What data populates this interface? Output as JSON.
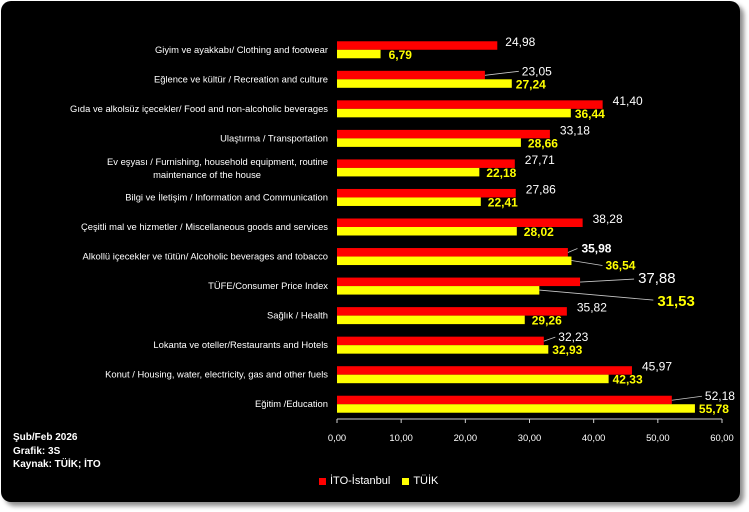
{
  "chart_data": {
    "type": "bar",
    "orientation": "horizontal",
    "categories": [
      "Giyim ve ayakkabı/ Clothing and footwear",
      "Eğlence ve kültür / Recreation and culture",
      "Gıda ve alkolsüz içecekler/ Food and non-alcoholic beverages",
      "Ulaştırma / Transportation",
      "Ev eşyası / Furnishing, household equipment, routine maintenance of the house",
      "Bilgi ve İletişim / Information and Communication",
      "Çeşitli mal ve hizmetler / Miscellaneous goods and services",
      "Alkollü içecekler ve tütün/ Alcoholic beverages and tobacco",
      "TÜFE/Consumer Price Index",
      "Sağlık / Health",
      "Lokanta ve oteller/Restaurants and Hotels",
      "Konut / Housing, water, electricity, gas and other fuels",
      "Eğitim /Education"
    ],
    "series": [
      {
        "name": "İTO-İstanbul",
        "color": "#ff0000",
        "values": [
          24.98,
          23.05,
          41.4,
          33.18,
          27.71,
          27.86,
          38.28,
          35.98,
          37.88,
          35.82,
          32.23,
          45.97,
          52.18
        ],
        "labels": [
          "24,98",
          "23,05",
          "41,40",
          "33,18",
          "27,71",
          "27,86",
          "38,28",
          "35,98",
          "37,88",
          "35,82",
          "32,23",
          "45,97",
          "52,18"
        ]
      },
      {
        "name": "TÜİK",
        "color": "#ffff00",
        "values": [
          6.79,
          27.24,
          36.44,
          28.66,
          22.18,
          22.41,
          28.02,
          36.54,
          31.53,
          29.26,
          32.93,
          42.33,
          55.78
        ],
        "labels": [
          "6,79",
          "27,24",
          "36,44",
          "28,66",
          "22,18",
          "22,41",
          "28,02",
          "36,54",
          "31,53",
          "29,26",
          "32,93",
          "42,33",
          "55,78"
        ]
      }
    ],
    "xlim": [
      0,
      60
    ],
    "xticks": [
      "0,00",
      "10,00",
      "20,00",
      "30,00",
      "40,00",
      "50,00",
      "60,00"
    ],
    "legend_position": "bottom"
  },
  "notes": {
    "line1": "Şub/Feb 2026",
    "line2": "Grafik: 3S",
    "line3": "Kaynak: TÜİK; İTO"
  },
  "legend": {
    "item1": "İTO-İstanbul",
    "item2": "TÜİK"
  }
}
